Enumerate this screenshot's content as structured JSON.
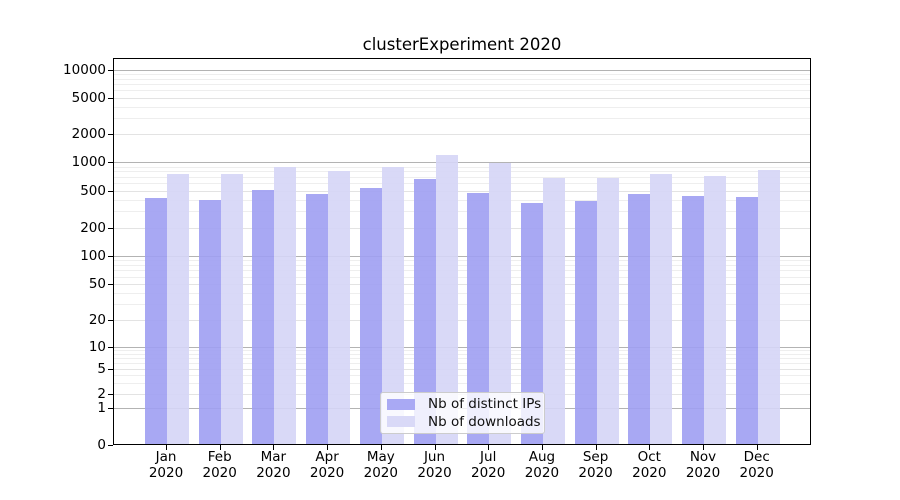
{
  "figure": {
    "background": "#ffffff"
  },
  "chart_data": {
    "type": "bar",
    "title": "clusterExperiment 2020",
    "categories": [
      "Jan",
      "Feb",
      "Mar",
      "Apr",
      "May",
      "Jun",
      "Jul",
      "Aug",
      "Sep",
      "Oct",
      "Nov",
      "Dec"
    ],
    "category_year": "2020",
    "series": [
      {
        "name": "Nb of distinct IPs",
        "color": "rgba(159,159,242,0.9)",
        "solid_color": "#a9a9f4",
        "values": [
          410,
          385,
          495,
          455,
          520,
          645,
          460,
          355,
          375,
          455,
          425,
          420
        ]
      },
      {
        "name": "Nb of downloads",
        "color": "rgba(213,213,246,0.9)",
        "solid_color": "#d9d9f7",
        "values": [
          740,
          740,
          875,
          785,
          875,
          1170,
          950,
          665,
          660,
          735,
          700,
          805
        ]
      }
    ],
    "xlabel": "",
    "ylabel": "",
    "yscale": "log-like with zero baseline",
    "ylim": [
      0,
      13000
    ],
    "yticks": [
      10000,
      5000,
      2000,
      1000,
      500,
      200,
      100,
      50,
      20,
      10,
      5,
      2,
      1,
      0
    ],
    "grid": "horizontal, minor log gridlines on",
    "legend_position": "lower center",
    "colors": {
      "grid_major": "#b3b3b3",
      "grid_mid": "#e3e3e3",
      "grid_minor": "#eeeeee",
      "axis": "#000000"
    }
  }
}
